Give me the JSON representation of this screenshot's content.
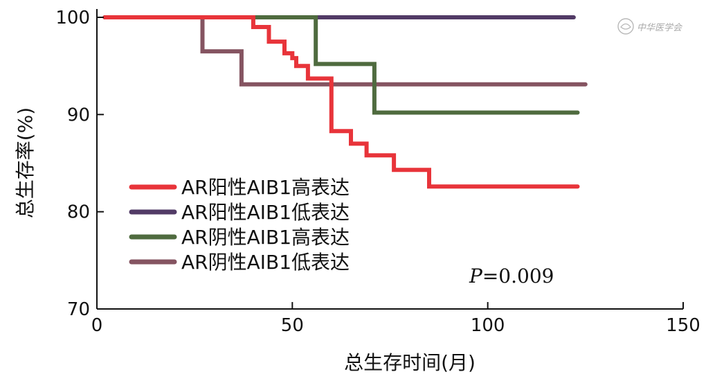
{
  "chart_data": {
    "type": "line",
    "step": true,
    "xlabel": "总生存时间(月)",
    "ylabel": "总生存率(%)",
    "xlim": [
      0,
      150
    ],
    "ylim": [
      70,
      100
    ],
    "xticks": [
      0,
      50,
      100,
      150
    ],
    "yticks": [
      70,
      80,
      90,
      100
    ],
    "grid": false,
    "legend_position": "bottom-left",
    "annotation": {
      "italic": "P",
      "rest": "=0.009"
    },
    "watermark": "中华医学会",
    "series": [
      {
        "name": "AR阳性AIB1高表达",
        "color": "#e8343a",
        "x": [
          2,
          40,
          40,
          44,
          44,
          48,
          48,
          50,
          50,
          51,
          51,
          54,
          54,
          60,
          60,
          65,
          65,
          69,
          69,
          76,
          76,
          85,
          85,
          123
        ],
        "y": [
          100,
          100,
          99,
          99,
          97.5,
          97.5,
          96.3,
          96.3,
          95.8,
          95.8,
          95,
          95,
          93.7,
          93.7,
          88.3,
          88.3,
          87,
          87,
          85.8,
          85.8,
          84.3,
          84.3,
          82.6,
          82.6
        ]
      },
      {
        "name": "AR阳性AIB1低表达",
        "color": "#523b66",
        "x": [
          2,
          122
        ],
        "y": [
          100,
          100
        ]
      },
      {
        "name": "AR阴性AIB1高表达",
        "color": "#4f6b3f",
        "x": [
          2,
          56,
          56,
          71,
          71,
          123
        ],
        "y": [
          100,
          100,
          95.2,
          95.2,
          90.2,
          90.2
        ]
      },
      {
        "name": "AR阴性AIB1低表达",
        "color": "#855461",
        "x": [
          2,
          27,
          27,
          37,
          37,
          125
        ],
        "y": [
          100,
          100,
          96.5,
          96.5,
          93.1,
          93.1
        ]
      }
    ]
  }
}
